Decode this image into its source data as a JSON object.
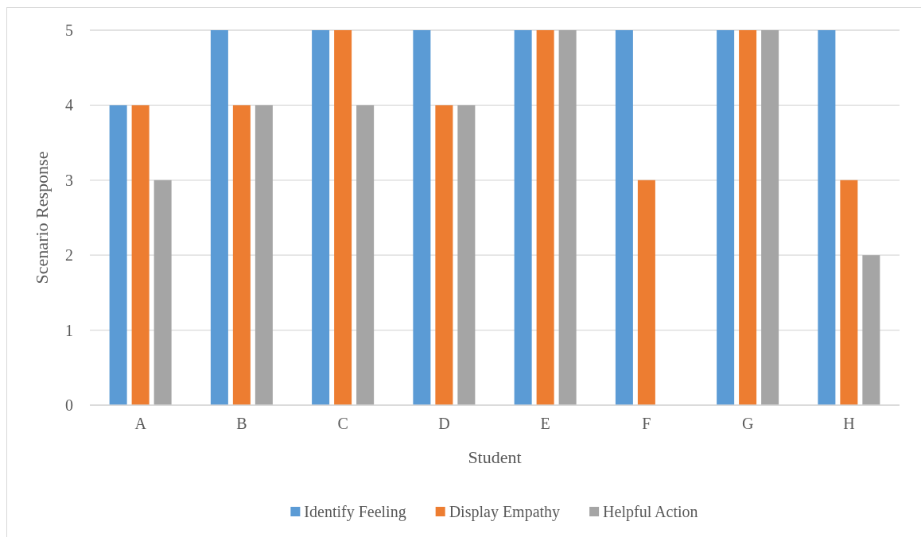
{
  "chart_data": {
    "type": "bar",
    "xlabel": "Student",
    "ylabel": "Scenario Response",
    "categories": [
      "A",
      "B",
      "C",
      "D",
      "E",
      "F",
      "G",
      "H"
    ],
    "series": [
      {
        "name": "Identify Feeling",
        "color": "#5b9bd5",
        "values": [
          4,
          5,
          5,
          5,
          5,
          5,
          5,
          5
        ]
      },
      {
        "name": "Display Empathy",
        "color": "#ed7d31",
        "values": [
          4,
          4,
          5,
          4,
          5,
          3,
          5,
          3
        ]
      },
      {
        "name": "Helpful Action",
        "color": "#a5a5a5",
        "values": [
          3,
          4,
          4,
          4,
          5,
          null,
          5,
          2
        ]
      }
    ],
    "ylim": [
      0,
      5
    ],
    "yticks": [
      0,
      1,
      2,
      3,
      4,
      5
    ],
    "grid": "y",
    "legend": "bottom"
  }
}
